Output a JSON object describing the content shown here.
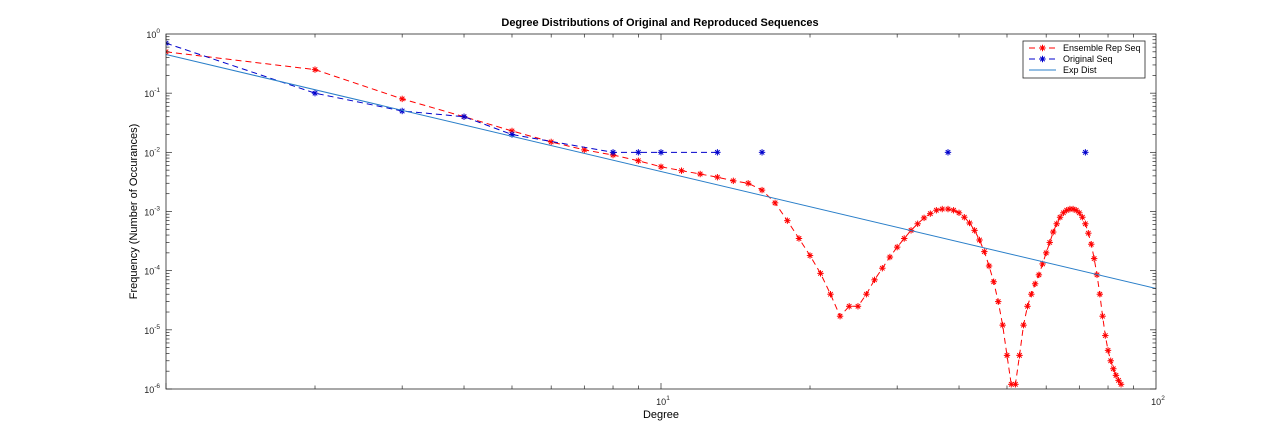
{
  "chart_data": {
    "type": "line",
    "title": "Degree Distributions of Original and Reproduced Sequences",
    "xlabel": "Degree",
    "ylabel": "Frequency (Number of Occurances)",
    "x_scale": "log",
    "y_scale": "log",
    "xlim": [
      1,
      100
    ],
    "ylim": [
      1e-06,
      1
    ],
    "x_ticks": [
      {
        "value": 10,
        "base": "10",
        "exp": "1"
      },
      {
        "value": 100,
        "base": "10",
        "exp": "2"
      }
    ],
    "y_ticks": [
      {
        "value": 1e-06,
        "base": "10",
        "exp": "-6"
      },
      {
        "value": 1e-05,
        "base": "10",
        "exp": "-5"
      },
      {
        "value": 0.0001,
        "base": "10",
        "exp": "-4"
      },
      {
        "value": 0.001,
        "base": "10",
        "exp": "-3"
      },
      {
        "value": 0.01,
        "base": "10",
        "exp": "-2"
      },
      {
        "value": 0.1,
        "base": "10",
        "exp": "-1"
      },
      {
        "value": 1,
        "base": "10",
        "exp": "0"
      }
    ],
    "grid": false,
    "legend_position": "top-right",
    "series": [
      {
        "name": "Ensemble Rep Seq",
        "color": "#ff0000",
        "style": "dashed",
        "marker": "*",
        "x": [
          1,
          2,
          3,
          4,
          5,
          6,
          7,
          8,
          9,
          10,
          11,
          12,
          13,
          14,
          15,
          16,
          17,
          18,
          19,
          20,
          21,
          22,
          23,
          24,
          25,
          26,
          27,
          28,
          29,
          30,
          31,
          32,
          33,
          34,
          35,
          36,
          37,
          38,
          39,
          40,
          41,
          42,
          43,
          44,
          45,
          46,
          47,
          48,
          49,
          50,
          51,
          52,
          53,
          54,
          55,
          56,
          57,
          58,
          59,
          60,
          61,
          62,
          63,
          64,
          65,
          66,
          67,
          68,
          69,
          70,
          71,
          72,
          73,
          74,
          75,
          76,
          77,
          78,
          79,
          80,
          81,
          82,
          83,
          84,
          85
        ],
        "y": [
          0.5,
          0.25,
          0.08,
          0.04,
          0.023,
          0.015,
          0.011,
          0.009,
          0.0072,
          0.0057,
          0.0049,
          0.0043,
          0.0038,
          0.0033,
          0.003,
          0.0023,
          0.0014,
          0.0007,
          0.00035,
          0.00018,
          9e-05,
          4e-05,
          1.7e-05,
          2.5e-05,
          2.5e-05,
          4e-05,
          7e-05,
          0.00011,
          0.00017,
          0.00025,
          0.00035,
          0.00048,
          0.00062,
          0.00078,
          0.00092,
          0.00105,
          0.0011,
          0.0011,
          0.00105,
          0.00095,
          0.0008,
          0.00064,
          0.00048,
          0.00033,
          0.00021,
          0.00012,
          6.5e-05,
          3e-05,
          1.2e-05,
          3.7e-06,
          1.2e-06,
          1.2e-06,
          3.7e-06,
          1.2e-05,
          2.5e-05,
          4e-05,
          6e-05,
          8.5e-05,
          0.00013,
          0.0002,
          0.0003,
          0.00045,
          0.00062,
          0.0008,
          0.00095,
          0.00105,
          0.0011,
          0.0011,
          0.00105,
          0.00095,
          0.0008,
          0.00062,
          0.00043,
          0.00028,
          0.00016,
          8.5e-05,
          4e-05,
          1.7e-05,
          8e-06,
          4.5e-06,
          3e-06,
          2.2e-06,
          1.7e-06,
          1.4e-06,
          1.2e-06
        ]
      },
      {
        "name": "Original Seq",
        "color": "#0000cc",
        "style": "dashed",
        "marker": "*",
        "x": [
          1,
          2,
          3,
          4,
          5,
          8,
          9,
          10,
          13,
          16,
          38,
          72
        ],
        "y": [
          0.7,
          0.1,
          0.05,
          0.04,
          0.02,
          0.01,
          0.01,
          0.01,
          0.01,
          0.01,
          0.01,
          0.01
        ],
        "connected_points": 9
      },
      {
        "name": "Exp Dist",
        "color": "#2a7fc9",
        "style": "solid",
        "marker": "none",
        "x": [
          1,
          100
        ],
        "y": [
          0.45,
          5e-05
        ]
      }
    ]
  }
}
